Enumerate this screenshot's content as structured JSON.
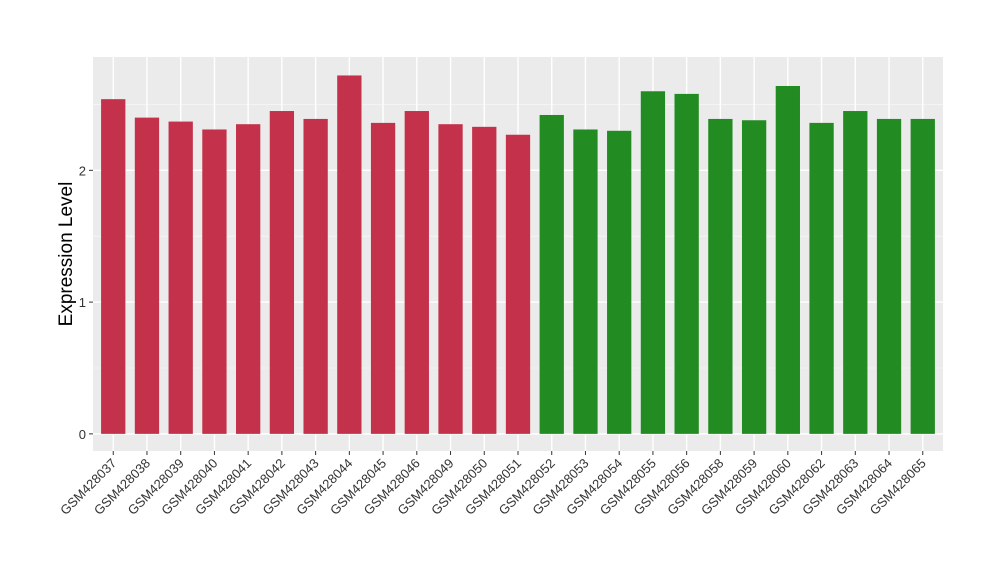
{
  "chart_data": {
    "type": "bar",
    "title": "",
    "xlabel": "",
    "ylabel": "Expression Level",
    "ylim": [
      -0.13,
      2.86
    ],
    "yticks": [
      0,
      1,
      2
    ],
    "grid": true,
    "legend": "none",
    "categories": [
      "GSM428037",
      "GSM428038",
      "GSM428039",
      "GSM428040",
      "GSM428041",
      "GSM428042",
      "GSM428043",
      "GSM428044",
      "GSM428045",
      "GSM428046",
      "GSM428049",
      "GSM428050",
      "GSM428051",
      "GSM428052",
      "GSM428053",
      "GSM428054",
      "GSM428055",
      "GSM428056",
      "GSM428058",
      "GSM428059",
      "GSM428060",
      "GSM428062",
      "GSM428063",
      "GSM428064",
      "GSM428065"
    ],
    "values": [
      2.54,
      2.4,
      2.37,
      2.31,
      2.35,
      2.45,
      2.39,
      2.72,
      2.36,
      2.45,
      2.35,
      2.33,
      2.27,
      2.42,
      2.31,
      2.3,
      2.6,
      2.58,
      2.39,
      2.38,
      2.64,
      2.36,
      2.45,
      2.39,
      2.39
    ],
    "groups": [
      "a",
      "a",
      "a",
      "a",
      "a",
      "a",
      "a",
      "a",
      "a",
      "a",
      "a",
      "a",
      "a",
      "b",
      "b",
      "b",
      "b",
      "b",
      "b",
      "b",
      "b",
      "b",
      "b",
      "b",
      "b"
    ],
    "colors": {
      "a": "#C3314A",
      "b": "#228B22"
    }
  }
}
